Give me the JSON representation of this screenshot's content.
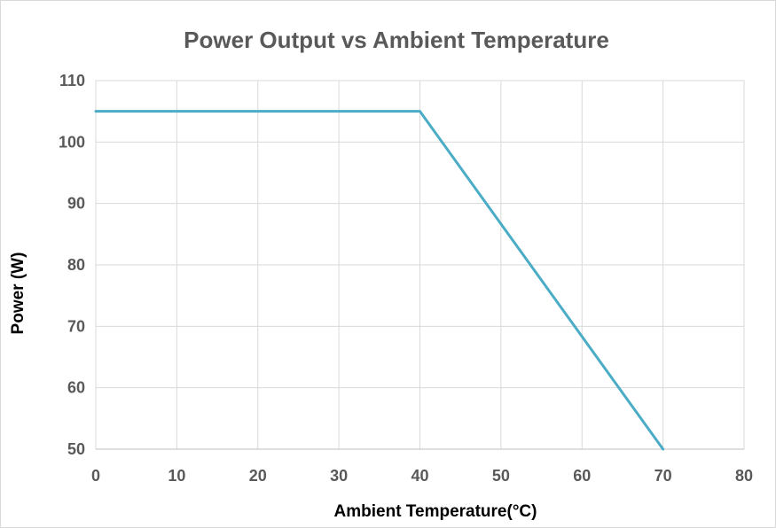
{
  "chart_data": {
    "type": "line",
    "title": "Power Output vs Ambient Temperature",
    "xlabel": "Ambient Temperature(°C)",
    "ylabel": "Power (W)",
    "xlim": [
      0,
      80
    ],
    "ylim": [
      50,
      110
    ],
    "x_ticks": [
      0,
      10,
      20,
      30,
      40,
      50,
      60,
      70,
      80
    ],
    "y_ticks": [
      50,
      60,
      70,
      80,
      90,
      100,
      110
    ],
    "grid": true,
    "legend": false,
    "series": [
      {
        "x": [
          0,
          40,
          70
        ],
        "values": [
          105,
          105,
          50
        ],
        "color": "#4bacc6"
      }
    ]
  }
}
